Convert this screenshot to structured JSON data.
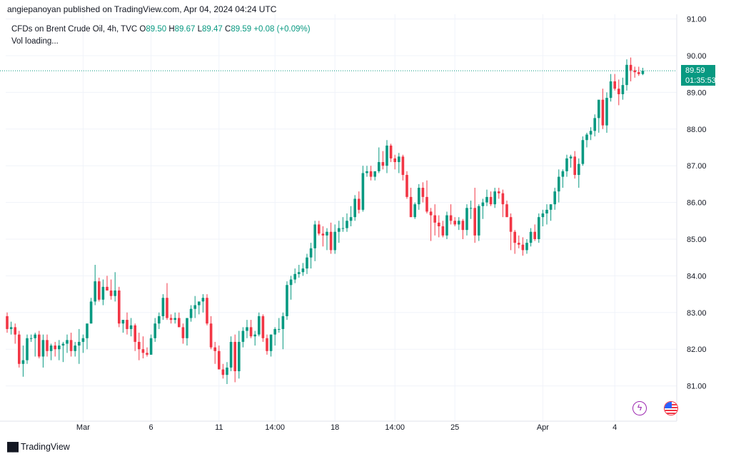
{
  "header": {
    "published": "angiepanoyan published on TradingView.com, Apr 04, 2024 04:24 UTC"
  },
  "legend": {
    "symbol": "CFDs on Brent Crude Oil, 4h, TVC",
    "open_label": "O",
    "open": "89.50",
    "high_label": "H",
    "high": "89.67",
    "low_label": "L",
    "low": "89.47",
    "close_label": "C",
    "close": "89.59",
    "change": "+0.08 (+0.09%)",
    "vol": "Vol loading..."
  },
  "price_tag": {
    "price": "89.59",
    "countdown": "01:35:53"
  },
  "footer": {
    "brand": "TradingView"
  },
  "colors": {
    "up": "#089981",
    "down": "#f23645",
    "grid": "#f0f3fa",
    "axis_text": "#131722"
  },
  "chart_data": {
    "type": "candlestick",
    "title": "CFDs on Brent Crude Oil, 4h, TVC",
    "ylim": [
      80.3,
      91.2
    ],
    "yticks": [
      81.0,
      82.0,
      83.0,
      84.0,
      85.0,
      86.0,
      87.0,
      88.0,
      89.0,
      90.0,
      91.0
    ],
    "ytick_labels": [
      "81.00",
      "82.00",
      "83.00",
      "84.00",
      "85.00",
      "86.00",
      "87.00",
      "88.00",
      "89.00",
      "90.00",
      "91.00"
    ],
    "xtick_labels": [
      {
        "label": "Mar",
        "index": 19
      },
      {
        "label": "6",
        "index": 36
      },
      {
        "label": "11",
        "index": 53
      },
      {
        "label": "14:00",
        "index": 67
      },
      {
        "label": "18",
        "index": 82
      },
      {
        "label": "14:00",
        "index": 97
      },
      {
        "label": "25",
        "index": 112
      },
      {
        "label": "Apr",
        "index": 134
      },
      {
        "label": "4",
        "index": 152
      }
    ],
    "last_price": 89.59,
    "candles": [
      [
        82.9,
        83.0,
        82.45,
        82.55
      ],
      [
        82.55,
        82.75,
        82.4,
        82.6
      ],
      [
        82.6,
        82.7,
        82.15,
        82.4
      ],
      [
        82.4,
        82.5,
        81.5,
        81.6
      ],
      [
        81.6,
        82.1,
        81.25,
        81.7
      ],
      [
        81.7,
        82.4,
        81.6,
        82.3
      ],
      [
        82.3,
        82.4,
        82.2,
        82.3
      ],
      [
        82.3,
        82.45,
        81.8,
        82.4
      ],
      [
        82.4,
        82.5,
        81.75,
        81.8
      ],
      [
        81.8,
        82.4,
        81.5,
        82.25
      ],
      [
        82.25,
        82.4,
        81.8,
        81.95
      ],
      [
        81.95,
        82.15,
        81.7,
        82.1
      ],
      [
        82.1,
        82.2,
        81.8,
        82.0
      ],
      [
        82.0,
        82.25,
        81.7,
        82.1
      ],
      [
        82.1,
        82.2,
        81.65,
        82.15
      ],
      [
        82.15,
        82.4,
        81.9,
        82.25
      ],
      [
        82.25,
        82.45,
        81.8,
        81.95
      ],
      [
        81.95,
        82.2,
        81.8,
        82.1
      ],
      [
        82.1,
        82.55,
        81.6,
        82.2
      ],
      [
        82.2,
        82.4,
        81.9,
        82.3
      ],
      [
        82.3,
        82.7,
        82.0,
        82.7
      ],
      [
        82.7,
        83.4,
        82.7,
        83.3
      ],
      [
        83.3,
        84.3,
        83.2,
        83.85
      ],
      [
        83.85,
        83.95,
        83.3,
        83.35
      ],
      [
        83.35,
        83.9,
        83.2,
        83.7
      ],
      [
        83.7,
        84.0,
        83.6,
        83.6
      ],
      [
        83.6,
        83.9,
        83.35,
        83.45
      ],
      [
        83.45,
        84.1,
        83.3,
        83.6
      ],
      [
        83.6,
        83.7,
        82.6,
        82.7
      ],
      [
        82.7,
        82.8,
        82.45,
        82.8
      ],
      [
        82.8,
        83.0,
        82.4,
        82.55
      ],
      [
        82.55,
        82.85,
        82.35,
        82.65
      ],
      [
        82.65,
        82.7,
        81.95,
        82.2
      ],
      [
        82.2,
        82.45,
        81.7,
        82.0
      ],
      [
        82.0,
        82.35,
        81.75,
        81.9
      ],
      [
        81.9,
        82.05,
        81.8,
        81.85
      ],
      [
        81.85,
        82.4,
        81.85,
        82.3
      ],
      [
        82.3,
        82.85,
        82.2,
        82.7
      ],
      [
        82.7,
        83.0,
        82.55,
        82.9
      ],
      [
        82.9,
        83.5,
        82.8,
        83.4
      ],
      [
        83.4,
        83.8,
        82.8,
        82.85
      ],
      [
        82.85,
        82.95,
        82.7,
        82.8
      ],
      [
        82.8,
        83.0,
        82.7,
        82.85
      ],
      [
        82.85,
        83.0,
        82.7,
        82.6
      ],
      [
        82.6,
        82.7,
        82.15,
        82.3
      ],
      [
        82.3,
        82.85,
        82.1,
        82.85
      ],
      [
        82.85,
        83.2,
        82.75,
        83.1
      ],
      [
        83.1,
        83.45,
        82.85,
        83.2
      ],
      [
        83.2,
        83.25,
        82.95,
        83.3
      ],
      [
        83.3,
        83.5,
        83.0,
        83.4
      ],
      [
        83.4,
        83.5,
        82.65,
        82.7
      ],
      [
        82.7,
        82.9,
        82.0,
        82.05
      ],
      [
        82.05,
        82.2,
        81.6,
        81.95
      ],
      [
        81.95,
        82.1,
        81.45,
        81.45
      ],
      [
        81.45,
        81.6,
        81.2,
        81.3
      ],
      [
        81.3,
        81.65,
        81.05,
        81.5
      ],
      [
        81.5,
        82.35,
        81.4,
        82.2
      ],
      [
        82.2,
        82.4,
        81.1,
        81.4
      ],
      [
        81.4,
        82.5,
        81.2,
        82.2
      ],
      [
        82.2,
        82.6,
        82.05,
        82.5
      ],
      [
        82.5,
        82.8,
        82.3,
        82.6
      ],
      [
        82.6,
        82.8,
        82.3,
        82.35
      ],
      [
        82.35,
        82.5,
        82.1,
        82.4
      ],
      [
        82.4,
        83.0,
        82.35,
        82.9
      ],
      [
        82.9,
        82.95,
        82.2,
        82.3
      ],
      [
        82.3,
        82.4,
        81.85,
        81.95
      ],
      [
        81.95,
        82.4,
        81.8,
        82.4
      ],
      [
        82.4,
        82.6,
        82.1,
        82.55
      ],
      [
        82.55,
        82.85,
        82.45,
        82.55
      ],
      [
        82.55,
        83.0,
        82.0,
        82.9
      ],
      [
        82.9,
        83.85,
        82.8,
        83.75
      ],
      [
        83.75,
        84.0,
        83.35,
        83.9
      ],
      [
        83.9,
        84.2,
        83.8,
        84.05
      ],
      [
        84.05,
        84.3,
        83.95,
        84.1
      ],
      [
        84.1,
        84.35,
        84.0,
        84.2
      ],
      [
        84.2,
        84.6,
        84.05,
        84.5
      ],
      [
        84.5,
        84.9,
        84.2,
        84.75
      ],
      [
        84.75,
        85.5,
        84.4,
        85.4
      ],
      [
        85.4,
        85.5,
        85.1,
        85.15
      ],
      [
        85.15,
        85.35,
        84.8,
        85.1
      ],
      [
        85.1,
        85.3,
        84.7,
        85.2
      ],
      [
        85.2,
        85.45,
        84.6,
        84.7
      ],
      [
        84.7,
        85.4,
        84.6,
        85.2
      ],
      [
        85.2,
        85.5,
        84.9,
        85.3
      ],
      [
        85.3,
        85.6,
        85.2,
        85.3
      ],
      [
        85.3,
        85.7,
        85.2,
        85.5
      ],
      [
        85.5,
        85.9,
        85.35,
        85.6
      ],
      [
        85.6,
        86.2,
        85.5,
        86.1
      ],
      [
        86.1,
        86.3,
        85.7,
        85.8
      ],
      [
        85.8,
        87.0,
        85.75,
        86.8
      ],
      [
        86.8,
        87.0,
        86.7,
        86.85
      ],
      [
        86.85,
        87.0,
        86.6,
        86.7
      ],
      [
        86.7,
        86.8,
        86.6,
        86.85
      ],
      [
        86.85,
        87.5,
        86.8,
        87.1
      ],
      [
        87.1,
        87.4,
        86.9,
        87.0
      ],
      [
        87.0,
        87.7,
        86.8,
        87.55
      ],
      [
        87.55,
        87.6,
        87.1,
        87.2
      ],
      [
        87.2,
        87.3,
        86.9,
        87.1
      ],
      [
        87.1,
        87.35,
        86.8,
        87.25
      ],
      [
        87.25,
        87.3,
        86.6,
        86.75
      ],
      [
        86.75,
        86.85,
        86.1,
        86.15
      ],
      [
        86.15,
        86.4,
        85.6,
        85.6
      ],
      [
        85.6,
        86.0,
        85.55,
        85.95
      ],
      [
        85.95,
        86.5,
        85.8,
        86.4
      ],
      [
        86.4,
        86.55,
        86.0,
        86.15
      ],
      [
        86.15,
        86.6,
        85.7,
        85.75
      ],
      [
        85.75,
        85.85,
        84.95,
        85.65
      ],
      [
        85.65,
        85.95,
        85.1,
        85.45
      ],
      [
        85.45,
        85.65,
        85.05,
        85.35
      ],
      [
        85.35,
        85.5,
        85.05,
        85.1
      ],
      [
        85.1,
        85.75,
        85.0,
        85.65
      ],
      [
        85.65,
        85.95,
        85.4,
        85.5
      ],
      [
        85.5,
        85.6,
        85.35,
        85.4
      ],
      [
        85.4,
        85.6,
        85.25,
        85.5
      ],
      [
        85.5,
        85.55,
        85.0,
        85.25
      ],
      [
        85.25,
        85.95,
        85.1,
        85.85
      ],
      [
        85.85,
        86.05,
        85.55,
        85.85
      ],
      [
        85.85,
        86.4,
        84.9,
        85.1
      ],
      [
        85.1,
        85.95,
        84.95,
        85.9
      ],
      [
        85.9,
        86.1,
        85.55,
        86.0
      ],
      [
        86.0,
        86.35,
        85.9,
        86.15
      ],
      [
        86.15,
        86.3,
        85.9,
        85.95
      ],
      [
        85.95,
        86.4,
        85.85,
        86.3
      ],
      [
        86.3,
        86.4,
        86.1,
        86.25
      ],
      [
        86.25,
        86.35,
        85.6,
        85.95
      ],
      [
        85.95,
        86.05,
        85.6,
        85.6
      ],
      [
        85.6,
        85.7,
        84.7,
        85.2
      ],
      [
        85.2,
        85.25,
        84.6,
        84.9
      ],
      [
        84.9,
        85.1,
        84.75,
        84.85
      ],
      [
        84.85,
        85.05,
        84.55,
        84.7
      ],
      [
        84.7,
        85.0,
        84.6,
        84.9
      ],
      [
        84.9,
        85.3,
        84.8,
        85.2
      ],
      [
        85.2,
        85.4,
        84.95,
        85.0
      ],
      [
        85.0,
        85.7,
        84.9,
        85.6
      ],
      [
        85.6,
        85.8,
        85.35,
        85.7
      ],
      [
        85.7,
        85.95,
        85.4,
        85.8
      ],
      [
        85.8,
        85.95,
        85.5,
        85.95
      ],
      [
        85.95,
        86.4,
        85.8,
        86.3
      ],
      [
        86.3,
        86.9,
        86.0,
        86.7
      ],
      [
        86.7,
        86.9,
        86.4,
        86.85
      ],
      [
        86.85,
        87.3,
        86.7,
        87.2
      ],
      [
        87.2,
        87.3,
        86.95,
        87.25
      ],
      [
        87.25,
        87.4,
        86.65,
        86.75
      ],
      [
        86.75,
        87.2,
        86.4,
        87.05
      ],
      [
        87.05,
        87.8,
        87.0,
        87.7
      ],
      [
        87.7,
        87.9,
        87.5,
        87.85
      ],
      [
        87.85,
        88.05,
        87.7,
        87.95
      ],
      [
        87.95,
        88.4,
        87.8,
        88.3
      ],
      [
        88.3,
        88.75,
        87.9,
        88.8
      ],
      [
        88.8,
        89.1,
        88.0,
        88.1
      ],
      [
        88.1,
        89.0,
        87.9,
        88.85
      ],
      [
        88.85,
        89.5,
        88.75,
        89.3
      ],
      [
        89.3,
        89.5,
        89.05,
        89.1
      ],
      [
        89.1,
        89.35,
        88.65,
        88.95
      ],
      [
        88.95,
        89.4,
        88.8,
        89.2
      ],
      [
        89.2,
        89.9,
        89.05,
        89.75
      ],
      [
        89.75,
        89.95,
        89.3,
        89.6
      ],
      [
        89.6,
        89.7,
        89.4,
        89.55
      ],
      [
        89.55,
        89.7,
        89.45,
        89.5
      ],
      [
        89.5,
        89.67,
        89.47,
        89.59
      ]
    ]
  }
}
